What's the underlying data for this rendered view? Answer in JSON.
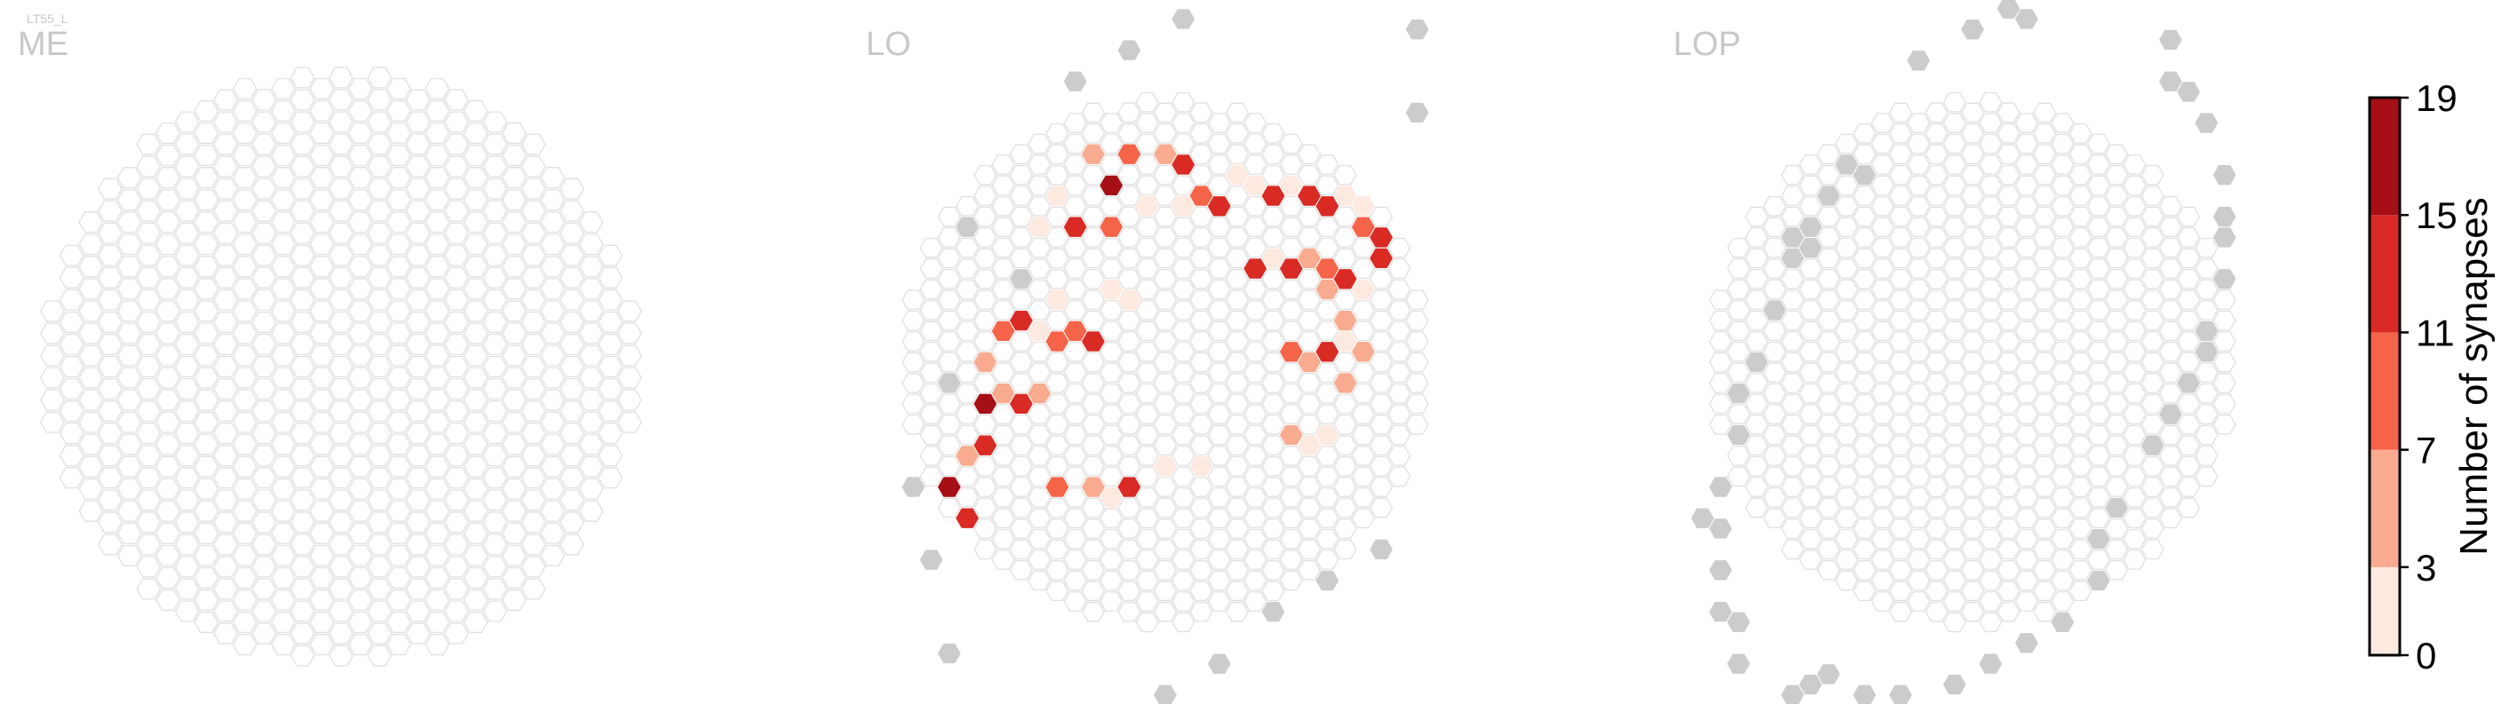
{
  "chart_data": {
    "type": "heatmap",
    "cell_type": "LT55_L",
    "colorbar": {
      "label": "Number of synapses",
      "ticks": [
        0,
        3,
        7,
        11,
        15,
        19
      ],
      "bin_colors": [
        "#fde9e0",
        "#f9ab8f",
        "#f56448",
        "#d92a24",
        "#a50f15"
      ]
    },
    "colors": {
      "empty_edge": "#e0e0e0",
      "empty_fill": "#ffffff",
      "outside_fill": "#cccccc"
    },
    "panels": [
      {
        "name": "ME",
        "q_range": [
          -15,
          15
        ],
        "r_range": [
          -16,
          16
        ],
        "hex_radius": 15.5,
        "outside": [],
        "synapses": []
      },
      {
        "name": "LO",
        "q_range": [
          -14,
          14
        ],
        "r_range": [
          -15,
          15
        ],
        "hex_radius": 14.5,
        "outside": [
          [
            -5,
            16
          ],
          [
            -2,
            16
          ],
          [
            1,
            16
          ],
          [
            4,
            16
          ],
          [
            7,
            16
          ],
          [
            10,
            15
          ],
          [
            13,
            12
          ],
          [
            14,
            9
          ],
          [
            14,
            5
          ],
          [
            12,
            -15
          ],
          [
            9,
            -15
          ],
          [
            6,
            -15
          ],
          [
            3,
            -16
          ],
          [
            0,
            -16
          ],
          [
            -3,
            -15
          ],
          [
            -13,
            -3
          ],
          [
            -14,
            1
          ],
          [
            -12,
            5
          ],
          [
            -8,
            8
          ],
          [
            -11,
            12
          ],
          [
            -12,
            -8
          ]
        ],
        "synapses": [
          {
            "q": -4,
            "r": 12,
            "v": 6
          },
          {
            "q": -2,
            "r": 11,
            "v": 9
          },
          {
            "q": 0,
            "r": 10,
            "v": 7
          },
          {
            "q": 1,
            "r": 9,
            "v": 12
          },
          {
            "q": -3,
            "r": 10,
            "v": 17
          },
          {
            "q": -6,
            "r": 11,
            "v": 2
          },
          {
            "q": -7,
            "r": 10,
            "v": 3
          },
          {
            "q": -5,
            "r": 9,
            "v": 12
          },
          {
            "q": -3,
            "r": 8,
            "v": 10
          },
          {
            "q": -1,
            "r": 8,
            "v": 2
          },
          {
            "q": 1,
            "r": 7,
            "v": 1
          },
          {
            "q": 2,
            "r": 7,
            "v": 9
          },
          {
            "q": 3,
            "r": 6,
            "v": 12
          },
          {
            "q": 4,
            "r": 7,
            "v": 1
          },
          {
            "q": 5,
            "r": 6,
            "v": 1
          },
          {
            "q": 6,
            "r": 5,
            "v": 13
          },
          {
            "q": 7,
            "r": 5,
            "v": 2
          },
          {
            "q": 8,
            "r": 4,
            "v": 12
          },
          {
            "q": 9,
            "r": 3,
            "v": 14
          },
          {
            "q": 10,
            "r": 3,
            "v": 3
          },
          {
            "q": 11,
            "r": 2,
            "v": 2
          },
          {
            "q": 11,
            "r": 1,
            "v": 9
          },
          {
            "q": 12,
            "r": 0,
            "v": 12
          },
          {
            "q": 12,
            "r": -1,
            "v": 14
          },
          {
            "q": 11,
            "r": -2,
            "v": 2
          },
          {
            "q": 10,
            "r": -1,
            "v": 14
          },
          {
            "q": 9,
            "r": 0,
            "v": 8
          },
          {
            "q": 8,
            "r": 1,
            "v": 6
          },
          {
            "q": 7,
            "r": 1,
            "v": 13
          },
          {
            "q": 6,
            "r": 2,
            "v": 3
          },
          {
            "q": 5,
            "r": 2,
            "v": 14
          },
          {
            "q": 9,
            "r": -1,
            "v": 5
          },
          {
            "q": 10,
            "r": -3,
            "v": 7
          },
          {
            "q": 9,
            "r": -4,
            "v": 13
          },
          {
            "q": 11,
            "r": -5,
            "v": 6
          },
          {
            "q": 10,
            "r": -6,
            "v": 4
          },
          {
            "q": 8,
            "r": -4,
            "v": 7
          },
          {
            "q": 7,
            "r": -3,
            "v": 8
          },
          {
            "q": 10,
            "r": -4,
            "v": 1
          },
          {
            "q": 7,
            "r": -7,
            "v": 7
          },
          {
            "q": 8,
            "r": -8,
            "v": 3
          },
          {
            "q": 9,
            "r": -8,
            "v": 2
          },
          {
            "q": -10,
            "r": 3,
            "v": 17
          },
          {
            "q": -9,
            "r": 3,
            "v": 6
          },
          {
            "q": -8,
            "r": 2,
            "v": 13
          },
          {
            "q": -7,
            "r": 2,
            "v": 7
          },
          {
            "q": -10,
            "r": 5,
            "v": 5
          },
          {
            "q": -9,
            "r": 6,
            "v": 9
          },
          {
            "q": -8,
            "r": 6,
            "v": 14
          },
          {
            "q": -7,
            "r": 5,
            "v": 1
          },
          {
            "q": -6,
            "r": 4,
            "v": 9
          },
          {
            "q": -5,
            "r": 4,
            "v": 9
          },
          {
            "q": -4,
            "r": 3,
            "v": 12
          },
          {
            "q": -3,
            "r": 5,
            "v": 1
          },
          {
            "q": -2,
            "r": 4,
            "v": 2
          },
          {
            "q": -6,
            "r": 6,
            "v": 2
          },
          {
            "q": -10,
            "r": 1,
            "v": 14
          },
          {
            "q": -11,
            "r": 1,
            "v": 5
          },
          {
            "q": -12,
            "r": 0,
            "v": 17
          },
          {
            "q": -13,
            "r": -1,
            "v": 10
          },
          {
            "q": -14,
            "r": -1,
            "v": 17
          },
          {
            "q": -11,
            "r": -2,
            "v": 12
          },
          {
            "q": -12,
            "r": -3,
            "v": 7
          },
          {
            "q": -13,
            "r": -3,
            "v": 12
          },
          {
            "q": -6,
            "r": -3,
            "v": 8
          },
          {
            "q": -4,
            "r": -4,
            "v": 7
          },
          {
            "q": -2,
            "r": -5,
            "v": 12
          },
          {
            "q": 0,
            "r": -5,
            "v": 3
          },
          {
            "q": -3,
            "r": -5,
            "v": 1
          },
          {
            "q": 2,
            "r": -6,
            "v": 1
          }
        ]
      },
      {
        "name": "LOP",
        "q_range": [
          -14,
          14
        ],
        "r_range": [
          -15,
          15
        ],
        "hex_radius": 14.5,
        "outside": [
          [
            -15,
            0
          ],
          [
            -14,
            1
          ],
          [
            -14,
            -1
          ],
          [
            -14,
            -3
          ],
          [
            -14,
            -5
          ],
          [
            -13,
            3
          ],
          [
            -13,
            -6
          ],
          [
            -13,
            -8
          ],
          [
            -13,
            5
          ],
          [
            -12,
            6
          ],
          [
            -11,
            8
          ],
          [
            -10,
            10
          ],
          [
            -10,
            11
          ],
          [
            -9,
            10
          ],
          [
            -9,
            11
          ],
          [
            -8,
            12
          ],
          [
            -7,
            13
          ],
          [
            -6,
            12
          ],
          [
            -11,
            -11
          ],
          [
            -10,
            -11
          ],
          [
            -9,
            -11
          ],
          [
            -8,
            -11
          ],
          [
            -7,
            -13
          ],
          [
            -6,
            -13
          ],
          [
            -5,
            -14
          ],
          [
            -4,
            -14
          ],
          [
            -3,
            -15
          ],
          [
            -1,
            -15
          ],
          [
            1,
            -15
          ],
          [
            3,
            -15
          ],
          [
            5,
            -15
          ],
          [
            7,
            -14
          ],
          [
            -3,
            16
          ],
          [
            0,
            16
          ],
          [
            2,
            16
          ],
          [
            3,
            15
          ],
          [
            11,
            10
          ],
          [
            11,
            8
          ],
          [
            12,
            7
          ],
          [
            13,
            5
          ],
          [
            14,
            2
          ],
          [
            14,
            0
          ],
          [
            14,
            -1
          ],
          [
            14,
            -3
          ],
          [
            13,
            -5
          ],
          [
            13,
            -6
          ],
          [
            12,
            -7
          ],
          [
            11,
            -8
          ],
          [
            10,
            -9
          ],
          [
            8,
            -11
          ],
          [
            7,
            -12
          ]
        ],
        "synapses": []
      }
    ]
  }
}
